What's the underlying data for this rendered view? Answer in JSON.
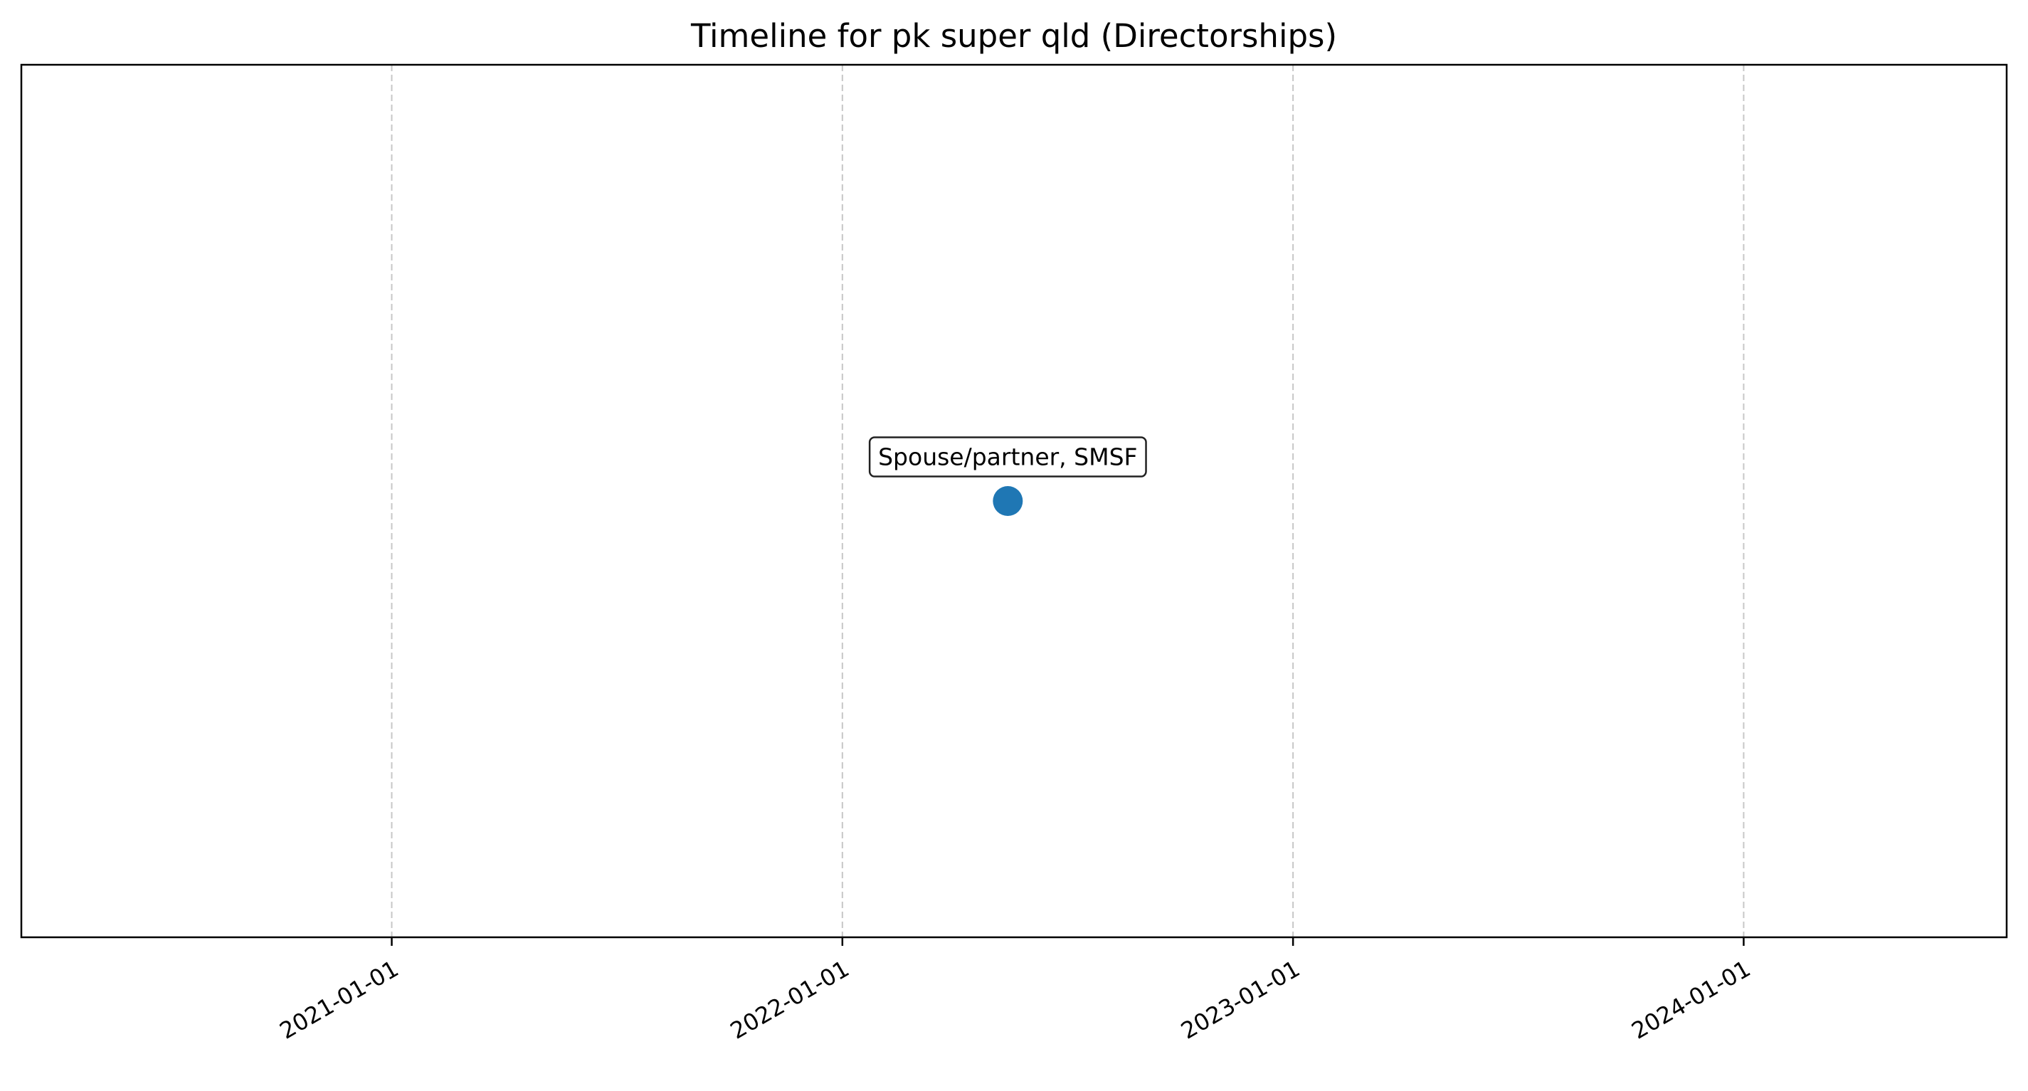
{
  "chart_data": {
    "type": "scatter",
    "title": "Timeline for pk super qld (Directorships)",
    "xlabel": "",
    "ylabel": "",
    "x_axis": {
      "scale": "date",
      "range": [
        "2020-03-07",
        "2024-08-01"
      ],
      "ticks": [
        "2021-01-01",
        "2022-01-01",
        "2023-01-01",
        "2024-01-01"
      ],
      "tick_rotation_deg": 30
    },
    "y_axis": {
      "range": [
        -1,
        1
      ],
      "visible": false
    },
    "grid": {
      "x": true,
      "y": false,
      "style": "dashed"
    },
    "points": [
      {
        "x": "2022-05-15",
        "y": 0,
        "label": "Spouse/partner, SMSF",
        "color": "#1f77b4"
      }
    ]
  }
}
